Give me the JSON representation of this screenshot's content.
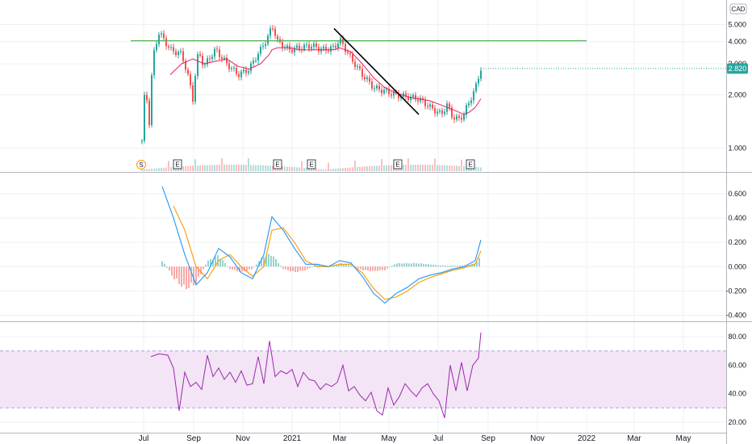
{
  "currency": "CAD",
  "last_price_label": "2.820",
  "colors": {
    "up": "#26a69a",
    "down": "#ef5350",
    "ma": "#e91e63",
    "resistance": "#4caf50",
    "trendline": "#000000",
    "macd": "#2196f3",
    "signal": "#ff9800",
    "rsi": "#9c27b0",
    "rsi_band": "#f3e5f5",
    "grid": "#eef0f3",
    "axis": "#131722",
    "tag": "#26a69a"
  },
  "x_axis": {
    "labels": [
      "Jul",
      "Sep",
      "Nov",
      "2021",
      "Mar",
      "May",
      "Jul",
      "Sep",
      "Nov",
      "2022",
      "Mar",
      "May"
    ]
  },
  "event_markers": {
    "split_label": "S",
    "earnings_label": "E",
    "earnings_count": 5
  },
  "chart_data": [
    {
      "type": "line",
      "panel": "price",
      "y_scale": "log",
      "ylim": [
        0.78,
        6.2
      ],
      "y_ticks": [
        "5.000",
        "4.000",
        "3.000",
        "2.000",
        "1.000"
      ],
      "x_dates": [
        "2020-06-29",
        "2020-07-03",
        "2020-07-08",
        "2020-07-13",
        "2020-07-20",
        "2020-08-03",
        "2020-08-17",
        "2020-08-31",
        "2020-09-07",
        "2020-09-14",
        "2020-09-28",
        "2020-10-12",
        "2020-10-26",
        "2020-11-09",
        "2020-11-23",
        "2020-12-04",
        "2020-12-07",
        "2020-12-14",
        "2020-12-28",
        "2021-01-11",
        "2021-01-25",
        "2021-02-08",
        "2021-02-22",
        "2021-03-01",
        "2021-03-15",
        "2021-03-29",
        "2021-04-12",
        "2021-04-26",
        "2021-05-10",
        "2021-05-24",
        "2021-06-07",
        "2021-06-21",
        "2021-07-05",
        "2021-07-12",
        "2021-07-19",
        "2021-07-26",
        "2021-08-02",
        "2021-08-09",
        "2021-08-16",
        "2021-08-23"
      ],
      "series": [
        {
          "values": [
            1.1,
            2.2,
            1.4,
            3.3,
            4.5,
            3.6,
            3.4,
            1.9,
            3.5,
            2.9,
            3.6,
            3.0,
            2.6,
            2.8,
            3.6,
            4.4,
            5.0,
            4.0,
            3.6,
            3.7,
            3.8,
            3.6,
            3.7,
            4.1,
            3.2,
            2.6,
            2.2,
            2.1,
            2.0,
            1.95,
            1.9,
            1.7,
            1.55,
            1.75,
            1.5,
            1.45,
            1.55,
            1.85,
            2.15,
            2.82
          ]
        }
      ],
      "moving_average": [
        null,
        null,
        null,
        null,
        null,
        2.6,
        3.0,
        3.2,
        3.1,
        3.0,
        3.1,
        3.2,
        2.9,
        2.8,
        3.0,
        3.4,
        3.6,
        3.7,
        3.7,
        3.6,
        3.6,
        3.6,
        3.6,
        3.7,
        3.5,
        3.0,
        2.5,
        2.2,
        2.05,
        1.95,
        1.9,
        1.85,
        1.75,
        1.7,
        1.65,
        1.6,
        1.55,
        1.6,
        1.7,
        1.9
      ],
      "annotations": [
        {
          "type": "horizontal_line",
          "y": 4.05,
          "x_start": "2020-06-15",
          "x_end": "2022-01-01"
        },
        {
          "type": "trendline",
          "from": [
            "2021-02-22",
            4.75
          ],
          "to": [
            "2021-06-07",
            1.55
          ]
        }
      ],
      "last_price": 2.82
    },
    {
      "type": "line",
      "panel": "MACD",
      "ylim": [
        -0.43,
        0.72
      ],
      "y_ticks": [
        "0.600",
        "0.400",
        "0.200",
        "0.000",
        "-0.200",
        "-0.400"
      ],
      "x_dates": [
        "2020-07-24",
        "2020-08-07",
        "2020-08-21",
        "2020-09-04",
        "2020-09-18",
        "2020-10-02",
        "2020-10-16",
        "2020-10-30",
        "2020-11-13",
        "2020-11-27",
        "2020-12-07",
        "2020-12-21",
        "2021-01-04",
        "2021-01-18",
        "2021-02-01",
        "2021-02-15",
        "2021-03-01",
        "2021-03-15",
        "2021-03-29",
        "2021-04-12",
        "2021-04-26",
        "2021-05-10",
        "2021-05-24",
        "2021-06-07",
        "2021-06-21",
        "2021-07-05",
        "2021-07-19",
        "2021-08-02",
        "2021-08-16",
        "2021-08-23"
      ],
      "series": [
        {
          "values": [
            0.66,
            0.4,
            0.1,
            -0.15,
            -0.05,
            0.15,
            0.08,
            -0.05,
            -0.1,
            0.1,
            0.41,
            0.3,
            0.15,
            0.02,
            0.02,
            0.0,
            0.05,
            0.03,
            -0.08,
            -0.22,
            -0.3,
            -0.22,
            -0.17,
            -0.1,
            -0.07,
            -0.05,
            -0.02,
            0.0,
            0.05,
            0.22
          ]
        },
        {
          "values": [
            null,
            0.5,
            0.3,
            0.0,
            -0.1,
            0.05,
            0.1,
            0.0,
            -0.08,
            0.0,
            0.3,
            0.32,
            0.2,
            0.05,
            0.0,
            0.0,
            0.02,
            0.02,
            -0.05,
            -0.18,
            -0.27,
            -0.25,
            -0.2,
            -0.13,
            -0.09,
            -0.06,
            -0.03,
            -0.01,
            0.02,
            0.13
          ]
        }
      ],
      "histogram": [
        0.06,
        -0.1,
        -0.2,
        -0.15,
        0.05,
        0.1,
        -0.02,
        -0.05,
        -0.02,
        0.1,
        0.11,
        -0.02,
        -0.05,
        -0.03,
        0.02,
        0.0,
        0.03,
        0.01,
        -0.03,
        -0.04,
        -0.03,
        0.03,
        0.03,
        0.03,
        0.02,
        0.01,
        0.01,
        0.01,
        0.03,
        0.09
      ]
    },
    {
      "type": "line",
      "panel": "RSI",
      "ylim": [
        16,
        88
      ],
      "y_ticks": [
        "80.00",
        "60.00",
        "40.00",
        "20.00"
      ],
      "band": [
        30,
        70
      ],
      "x_dates": [
        "2020-07-10",
        "2020-07-20",
        "2020-07-31",
        "2020-08-07",
        "2020-08-14",
        "2020-08-21",
        "2020-08-28",
        "2020-09-04",
        "2020-09-11",
        "2020-09-18",
        "2020-09-25",
        "2020-10-02",
        "2020-10-09",
        "2020-10-16",
        "2020-10-23",
        "2020-10-30",
        "2020-11-06",
        "2020-11-13",
        "2020-11-20",
        "2020-11-27",
        "2020-12-04",
        "2020-12-11",
        "2020-12-18",
        "2020-12-25",
        "2021-01-01",
        "2021-01-08",
        "2021-01-15",
        "2021-01-22",
        "2021-01-29",
        "2021-02-05",
        "2021-02-12",
        "2021-02-19",
        "2021-02-26",
        "2021-03-05",
        "2021-03-12",
        "2021-03-19",
        "2021-03-26",
        "2021-04-02",
        "2021-04-09",
        "2021-04-16",
        "2021-04-23",
        "2021-04-30",
        "2021-05-07",
        "2021-05-14",
        "2021-05-21",
        "2021-05-28",
        "2021-06-04",
        "2021-06-11",
        "2021-06-18",
        "2021-06-25",
        "2021-07-02",
        "2021-07-09",
        "2021-07-16",
        "2021-07-23",
        "2021-07-30",
        "2021-08-06",
        "2021-08-13",
        "2021-08-20",
        "2021-08-23"
      ],
      "series": [
        {
          "values": [
            66,
            68,
            67,
            58,
            28,
            55,
            45,
            48,
            43,
            67,
            52,
            58,
            50,
            55,
            48,
            56,
            46,
            47,
            66,
            47,
            77,
            52,
            56,
            54,
            57,
            45,
            55,
            50,
            49,
            43,
            47,
            45,
            48,
            60,
            42,
            45,
            39,
            35,
            41,
            28,
            25,
            44,
            32,
            38,
            47,
            42,
            38,
            44,
            47,
            40,
            35,
            23,
            60,
            42,
            62,
            42,
            60,
            65,
            83
          ]
        }
      ]
    }
  ]
}
